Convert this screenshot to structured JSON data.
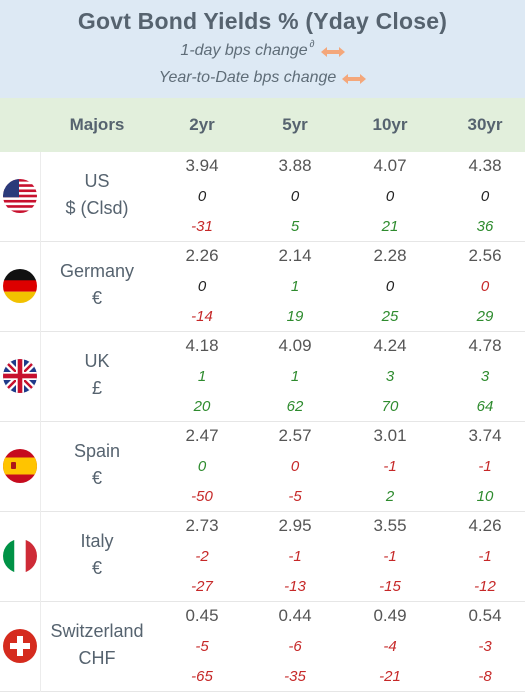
{
  "header": {
    "title": "Govt Bond Yields %  (Yday Close)",
    "line1": "1-day bps change",
    "line1_sup": "∂",
    "line2": "Year-to-Date bps change",
    "arrow_color": "#f4a77a"
  },
  "columns": {
    "majors": "Majors",
    "c2": "2yr",
    "c5": "5yr",
    "c10": "10yr",
    "c30": "30yr"
  },
  "colors": {
    "negative": "#c62828",
    "positive": "#2e8b2e",
    "zero": "#222222",
    "header_bg": "#dde9f4",
    "colhead_bg": "#e2efdc"
  },
  "rows": [
    {
      "country": "US",
      "sub": "$ (Clsd)",
      "flag": "us-flag-icon",
      "yield": [
        "3.94",
        "3.88",
        "4.07",
        "4.38"
      ],
      "day": [
        "0",
        "0",
        "0",
        "0"
      ],
      "ytd": [
        "-31",
        "5",
        "21",
        "36"
      ]
    },
    {
      "country": "Germany",
      "sub": "€",
      "flag": "germany-flag-icon",
      "yield": [
        "2.26",
        "2.14",
        "2.28",
        "2.56"
      ],
      "day": [
        "0",
        "1",
        "0",
        "0"
      ],
      "ytd": [
        "-14",
        "19",
        "25",
        "29"
      ]
    },
    {
      "country": "UK",
      "sub": "£",
      "flag": "uk-flag-icon",
      "yield": [
        "4.18",
        "4.09",
        "4.24",
        "4.78"
      ],
      "day": [
        "1",
        "1",
        "3",
        "3"
      ],
      "ytd": [
        "20",
        "62",
        "70",
        "64"
      ]
    },
    {
      "country": "Spain",
      "sub": "€",
      "flag": "spain-flag-icon",
      "yield": [
        "2.47",
        "2.57",
        "3.01",
        "3.74"
      ],
      "day": [
        "0",
        "0",
        "-1",
        "-1"
      ],
      "ytd": [
        "-50",
        "-5",
        "2",
        "10"
      ]
    },
    {
      "country": "Italy",
      "sub": "€",
      "flag": "italy-flag-icon",
      "yield": [
        "2.73",
        "2.95",
        "3.55",
        "4.26"
      ],
      "day": [
        "-2",
        "-1",
        "-1",
        "-1"
      ],
      "ytd": [
        "-27",
        "-13",
        "-15",
        "-12"
      ]
    },
    {
      "country": "Switzerland",
      "sub": "CHF",
      "flag": "switzerland-flag-icon",
      "yield": [
        "0.45",
        "0.44",
        "0.49",
        "0.54"
      ],
      "day": [
        "-5",
        "-6",
        "-4",
        "-3"
      ],
      "ytd": [
        "-65",
        "-35",
        "-21",
        "-8"
      ]
    }
  ],
  "day_colors": [
    [
      "zero",
      "zero",
      "zero",
      "zero"
    ],
    [
      "zero",
      "pos",
      "zero",
      "neg"
    ],
    [
      "pos",
      "pos",
      "pos",
      "pos"
    ],
    [
      "pos",
      "neg",
      "neg",
      "neg"
    ],
    [
      "neg",
      "neg",
      "neg",
      "neg"
    ],
    [
      "neg",
      "neg",
      "neg",
      "neg"
    ]
  ],
  "ytd_colors": [
    [
      "neg",
      "pos",
      "pos",
      "pos"
    ],
    [
      "neg",
      "pos",
      "pos",
      "pos"
    ],
    [
      "pos",
      "pos",
      "pos",
      "pos"
    ],
    [
      "neg",
      "neg",
      "pos",
      "pos"
    ],
    [
      "neg",
      "neg",
      "neg",
      "neg"
    ],
    [
      "neg",
      "neg",
      "neg",
      "neg"
    ]
  ]
}
